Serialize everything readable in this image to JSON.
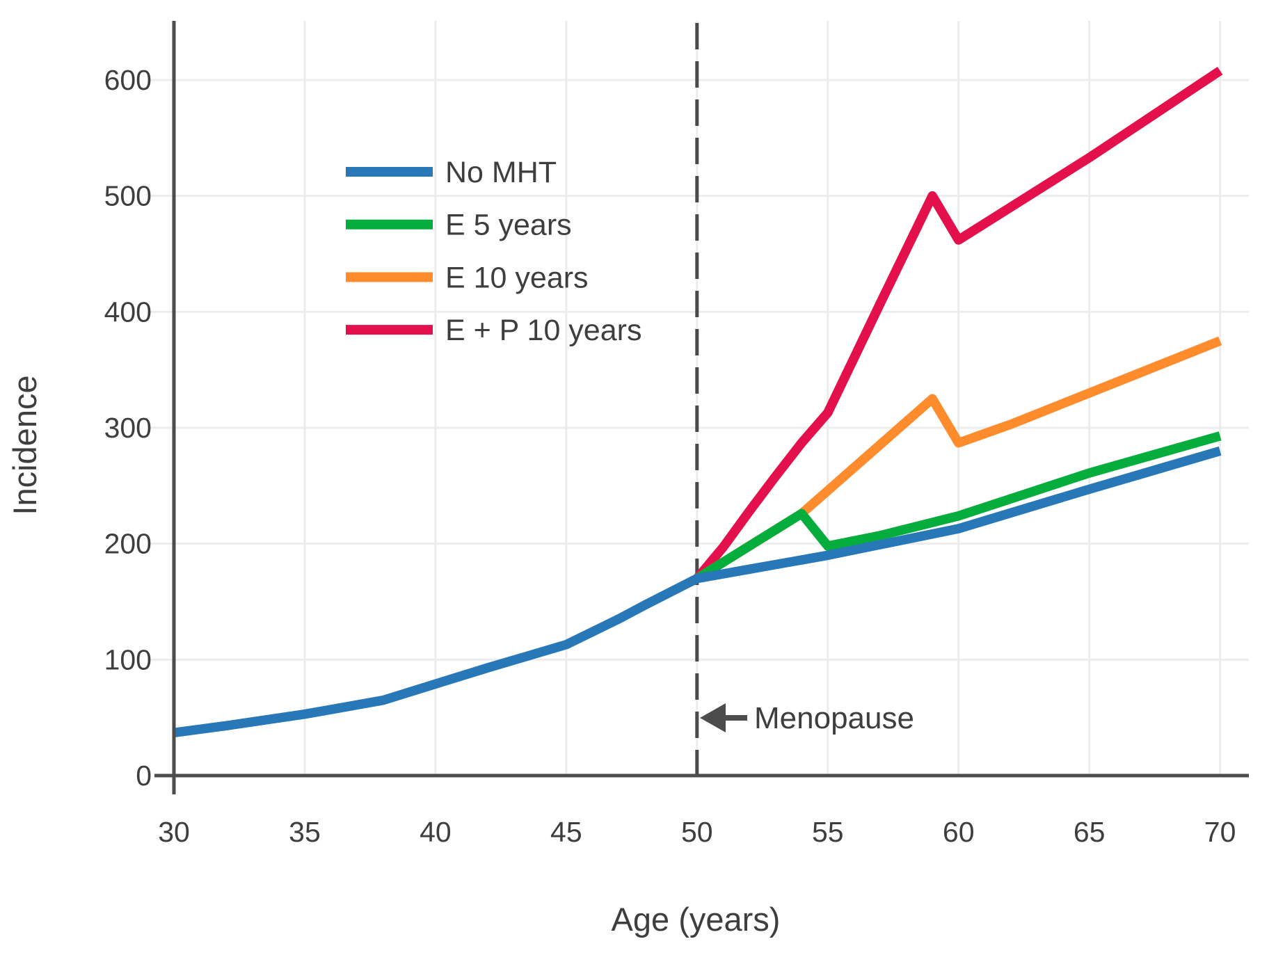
{
  "chart_data": {
    "type": "line",
    "title": "",
    "xlabel": "Age (years)",
    "ylabel": "Incidence",
    "x_ticks": [
      30,
      35,
      40,
      45,
      50,
      55,
      60,
      65,
      70
    ],
    "y_ticks": [
      0,
      100,
      200,
      300,
      400,
      500,
      600
    ],
    "xlim": [
      30,
      71.1
    ],
    "ylim": [
      0,
      651
    ],
    "grid": true,
    "legend_position": "upper-left-inside",
    "legend_entries": [
      "No MHT",
      "E 5 years",
      "E 10 years",
      "E + P 10 years"
    ],
    "vertical_reference_line": {
      "x": 50,
      "style": "dashed",
      "color": "#4A4A4A"
    },
    "annotation": {
      "text": "Menopause",
      "arrow": "left",
      "arrow_tip_x": 50,
      "y_value": 50
    },
    "series": [
      {
        "name": "No MHT",
        "color": "#2878B8",
        "points": [
          [
            30,
            37
          ],
          [
            32,
            43
          ],
          [
            35,
            53
          ],
          [
            38,
            65
          ],
          [
            40,
            79
          ],
          [
            42,
            93
          ],
          [
            45,
            113
          ],
          [
            47,
            135
          ],
          [
            48,
            147
          ],
          [
            50,
            170
          ],
          [
            52,
            178
          ],
          [
            55,
            190
          ],
          [
            60,
            213
          ],
          [
            65,
            247
          ],
          [
            70,
            280
          ]
        ]
      },
      {
        "name": "E 5 years",
        "color": "#05AD3C",
        "points": [
          [
            50,
            170
          ],
          [
            54,
            226
          ],
          [
            55,
            198
          ],
          [
            57,
            207
          ],
          [
            60,
            224
          ],
          [
            65,
            261
          ],
          [
            70,
            293
          ]
        ]
      },
      {
        "name": "E 10 years",
        "color": "#FF8C2C",
        "points": [
          [
            50,
            170
          ],
          [
            54,
            226
          ],
          [
            59,
            325
          ],
          [
            60,
            287
          ],
          [
            62,
            303
          ],
          [
            65,
            330
          ],
          [
            70,
            375
          ]
        ]
      },
      {
        "name": "E + P 10 years",
        "color": "#E3104B",
        "points": [
          [
            50,
            170
          ],
          [
            51,
            197
          ],
          [
            52,
            228
          ],
          [
            53,
            258
          ],
          [
            54,
            287
          ],
          [
            55,
            313
          ],
          [
            57,
            407
          ],
          [
            59,
            500
          ],
          [
            60,
            462
          ],
          [
            65,
            533
          ],
          [
            70,
            608
          ]
        ]
      }
    ]
  },
  "style": {
    "text_color": "#3E3E3E",
    "axis_color": "#4C4C4C",
    "grid_color": "#ECECEC",
    "background": "#FFFFFF"
  }
}
